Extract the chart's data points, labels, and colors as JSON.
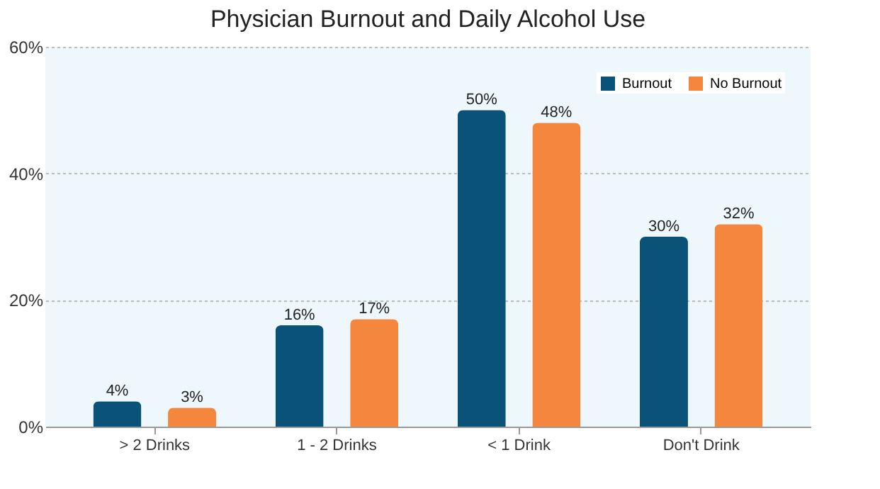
{
  "chart_data": {
    "type": "bar",
    "title": "Physician Burnout and Daily Alcohol Use",
    "categories": [
      "> 2 Drinks",
      "1 - 2 Drinks",
      "< 1 Drink",
      "Don't Drink"
    ],
    "series": [
      {
        "name": "Burnout",
        "color": "#0b5279",
        "values": [
          4,
          16,
          50,
          30
        ],
        "value_labels": [
          "4%",
          "16%",
          "50%",
          "30%"
        ]
      },
      {
        "name": "No Burnout",
        "color": "#f4873d",
        "values": [
          3,
          17,
          48,
          32
        ],
        "value_labels": [
          "3%",
          "17%",
          "48%",
          "32%"
        ]
      }
    ],
    "ylim": [
      0,
      60
    ],
    "yticks": [
      {
        "value": 0,
        "label": "0%"
      },
      {
        "value": 20,
        "label": "20%"
      },
      {
        "value": 40,
        "label": "40%"
      },
      {
        "value": 60,
        "label": "60%"
      }
    ],
    "grid": "y",
    "legend": "top right"
  }
}
